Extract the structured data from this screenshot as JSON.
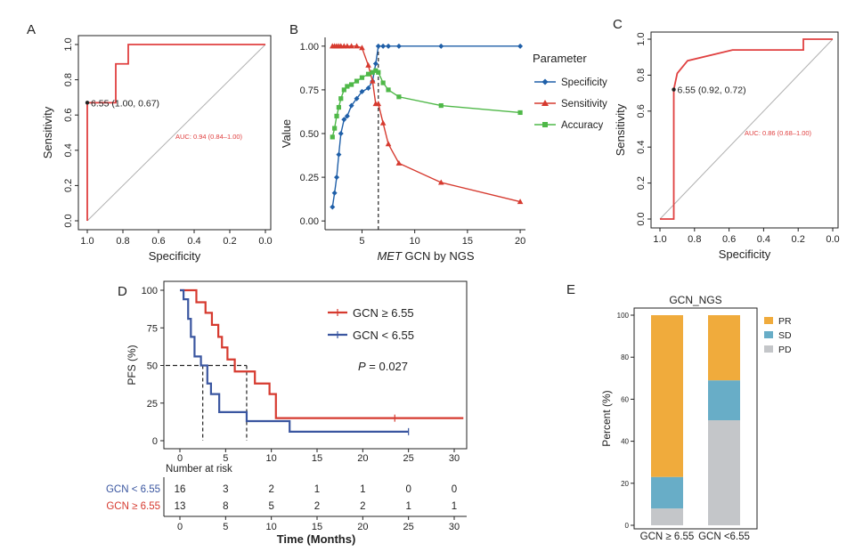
{
  "chart_data": [
    {
      "panel": "A",
      "type": "line",
      "xlabel": "Specificity",
      "ylabel": "Sensitivity",
      "xlim": [
        1.0,
        0.0
      ],
      "ylim": [
        0.0,
        1.0
      ],
      "xticks": [
        "1.0",
        "0.8",
        "0.6",
        "0.4",
        "0.2",
        "0.0"
      ],
      "yticks": [
        "0.0",
        "0.2",
        "0.4",
        "0.6",
        "0.8",
        "1.0"
      ],
      "xtick_values": [
        1.0,
        0.8,
        0.6,
        0.4,
        0.2,
        0.0
      ],
      "ytick_values": [
        0.0,
        0.2,
        0.4,
        0.6,
        0.8,
        1.0
      ],
      "roc_x": [
        1.0,
        1.0,
        0.84,
        0.84,
        0.77,
        0.77,
        0.0
      ],
      "roc_y": [
        0.0,
        0.67,
        0.67,
        0.89,
        0.89,
        1.0,
        1.0
      ],
      "threshold_point": [
        1.0,
        0.67
      ],
      "threshold_label": "6.55 (1.00, 0.67)",
      "auc_label": "AUC: 0.94 (0.84–1.00)",
      "colors": {
        "roc": "#e04040",
        "diagonal": "#b0b0b0",
        "auc": "#e04040"
      }
    },
    {
      "panel": "B",
      "type": "line",
      "xlabel_italic": "MET",
      "xlabel_rest": " GCN by NGS",
      "ylabel": "Value",
      "xlim": [
        1.5,
        20.5
      ],
      "ylim": [
        -0.05,
        1.05
      ],
      "xticks": [
        "5",
        "10",
        "15",
        "20"
      ],
      "yticks": [
        "0.00",
        "0.25",
        "0.50",
        "0.75",
        "1.00"
      ],
      "xtick_values": [
        5,
        10,
        15,
        20
      ],
      "ytick_values": [
        0.0,
        0.25,
        0.5,
        0.75,
        1.0
      ],
      "x": [
        2.2,
        2.4,
        2.6,
        2.8,
        3.0,
        3.3,
        3.6,
        4.0,
        4.5,
        5.0,
        5.6,
        6.0,
        6.3,
        6.55,
        7.0,
        7.5,
        8.5,
        12.5,
        20.0
      ],
      "series": [
        {
          "name": "Specificity",
          "color": "#1f5fa8",
          "marker": "diamond",
          "values": [
            0.08,
            0.16,
            0.25,
            0.38,
            0.5,
            0.58,
            0.6,
            0.66,
            0.7,
            0.74,
            0.76,
            0.8,
            0.9,
            1.0,
            1.0,
            1.0,
            1.0,
            1.0,
            1.0
          ]
        },
        {
          "name": "Sensitivity",
          "color": "#d63a2f",
          "marker": "triangle",
          "values": [
            1.0,
            1.0,
            1.0,
            1.0,
            1.0,
            1.0,
            1.0,
            1.0,
            1.0,
            0.99,
            0.89,
            0.8,
            0.67,
            0.67,
            0.56,
            0.44,
            0.33,
            0.22,
            0.11
          ]
        },
        {
          "name": "Accuracy",
          "color": "#4fb848",
          "marker": "square",
          "values": [
            0.48,
            0.53,
            0.6,
            0.65,
            0.7,
            0.75,
            0.77,
            0.78,
            0.8,
            0.82,
            0.84,
            0.85,
            0.86,
            0.85,
            0.79,
            0.75,
            0.71,
            0.66,
            0.62
          ]
        }
      ],
      "cutoff": 6.55,
      "legend_title": "Parameter",
      "legend_position": "right"
    },
    {
      "panel": "C",
      "type": "line",
      "xlabel": "Specificity",
      "ylabel": "Sensitivity",
      "xlim": [
        1.0,
        0.0
      ],
      "ylim": [
        0.0,
        1.0
      ],
      "xticks": [
        "1.0",
        "0.8",
        "0.6",
        "0.4",
        "0.2",
        "0.0"
      ],
      "yticks": [
        "0.0",
        "0.2",
        "0.4",
        "0.6",
        "0.8",
        "1.0"
      ],
      "xtick_values": [
        1.0,
        0.8,
        0.6,
        0.4,
        0.2,
        0.0
      ],
      "ytick_values": [
        0.0,
        0.2,
        0.4,
        0.6,
        0.8,
        1.0
      ],
      "roc_x": [
        1.0,
        0.92,
        0.92,
        0.9,
        0.84,
        0.58,
        0.17,
        0.17,
        0.0
      ],
      "roc_y": [
        0.0,
        0.0,
        0.72,
        0.81,
        0.88,
        0.94,
        0.94,
        1.0,
        1.0
      ],
      "threshold_point": [
        0.92,
        0.72
      ],
      "threshold_label": "6.55 (0.92, 0.72)",
      "auc_label": "AUC: 0.86 (0.68–1.00)",
      "colors": {
        "roc": "#e04040",
        "diagonal": "#b0b0b0",
        "auc": "#e04040"
      }
    },
    {
      "panel": "D",
      "type": "line",
      "xlabel": "Time (Months)",
      "ylabel": "PFS (%)",
      "xlim": [
        -1.5,
        31.5
      ],
      "ylim": [
        -5,
        103
      ],
      "xticks": [
        "0",
        "5",
        "10",
        "15",
        "20",
        "25",
        "30"
      ],
      "yticks": [
        "0",
        "25",
        "50",
        "75",
        "100"
      ],
      "xtick_values": [
        0,
        5,
        10,
        15,
        20,
        25,
        30
      ],
      "ytick_values": [
        0,
        25,
        50,
        75,
        100
      ],
      "series": [
        {
          "name": "GCN ≥ 6.55",
          "color": "#d63a2f",
          "x": [
            0,
            1.8,
            2.8,
            3.5,
            4.2,
            4.6,
            5.2,
            6.0,
            7.3,
            8.2,
            9.8,
            10.5,
            31.5
          ],
          "y": [
            100,
            92,
            85,
            77,
            69,
            62,
            54,
            46,
            46,
            38,
            31,
            15,
            15
          ],
          "censor_x": [
            23.5
          ]
        },
        {
          "name": "GCN < 6.55",
          "color": "#3a56a0",
          "x": [
            0,
            0.4,
            0.9,
            1.2,
            1.6,
            2.3,
            3.0,
            3.4,
            4.3,
            7.3,
            12.0,
            25.0
          ],
          "y": [
            100,
            94,
            81,
            69,
            56,
            50,
            38,
            31,
            19,
            13,
            6,
            6
          ],
          "censor_x": [
            25.0
          ]
        }
      ],
      "median_lines": [
        2.5,
        7.3
      ],
      "pvalue": "P = 0.027",
      "risk_header": "Number at risk",
      "risk_table": [
        {
          "label": "GCN < 6.55",
          "color": "#3a56a0",
          "values": [
            "16",
            "3",
            "2",
            "1",
            "1",
            "0",
            "0"
          ]
        },
        {
          "label": "GCN ≥ 6.55",
          "color": "#d63a2f",
          "values": [
            "13",
            "8",
            "5",
            "2",
            "2",
            "1",
            "1"
          ]
        }
      ],
      "risk_xticks": [
        "0",
        "5",
        "10",
        "15",
        "20",
        "25",
        "30"
      ]
    },
    {
      "panel": "E",
      "type": "bar",
      "title": "GCN_NGS",
      "ylabel": "Percent (%)",
      "ylim": [
        0,
        100
      ],
      "yticks": [
        "0",
        "20",
        "40",
        "60",
        "80",
        "100"
      ],
      "ytick_values": [
        0,
        20,
        40,
        60,
        80,
        100
      ],
      "categories": [
        "GCN ≥ 6.55",
        "GCN <6.55"
      ],
      "series": [
        {
          "name": "PD",
          "color": "#c4c6c9",
          "values": [
            8,
            50
          ]
        },
        {
          "name": "SD",
          "color": "#68adc7",
          "values": [
            15,
            19
          ]
        },
        {
          "name": "PR",
          "color": "#f0ab3c",
          "values": [
            77,
            31
          ]
        }
      ],
      "legend_order": [
        "PR",
        "SD",
        "PD"
      ]
    }
  ],
  "panel_labels": [
    "A",
    "B",
    "C",
    "D",
    "E"
  ]
}
